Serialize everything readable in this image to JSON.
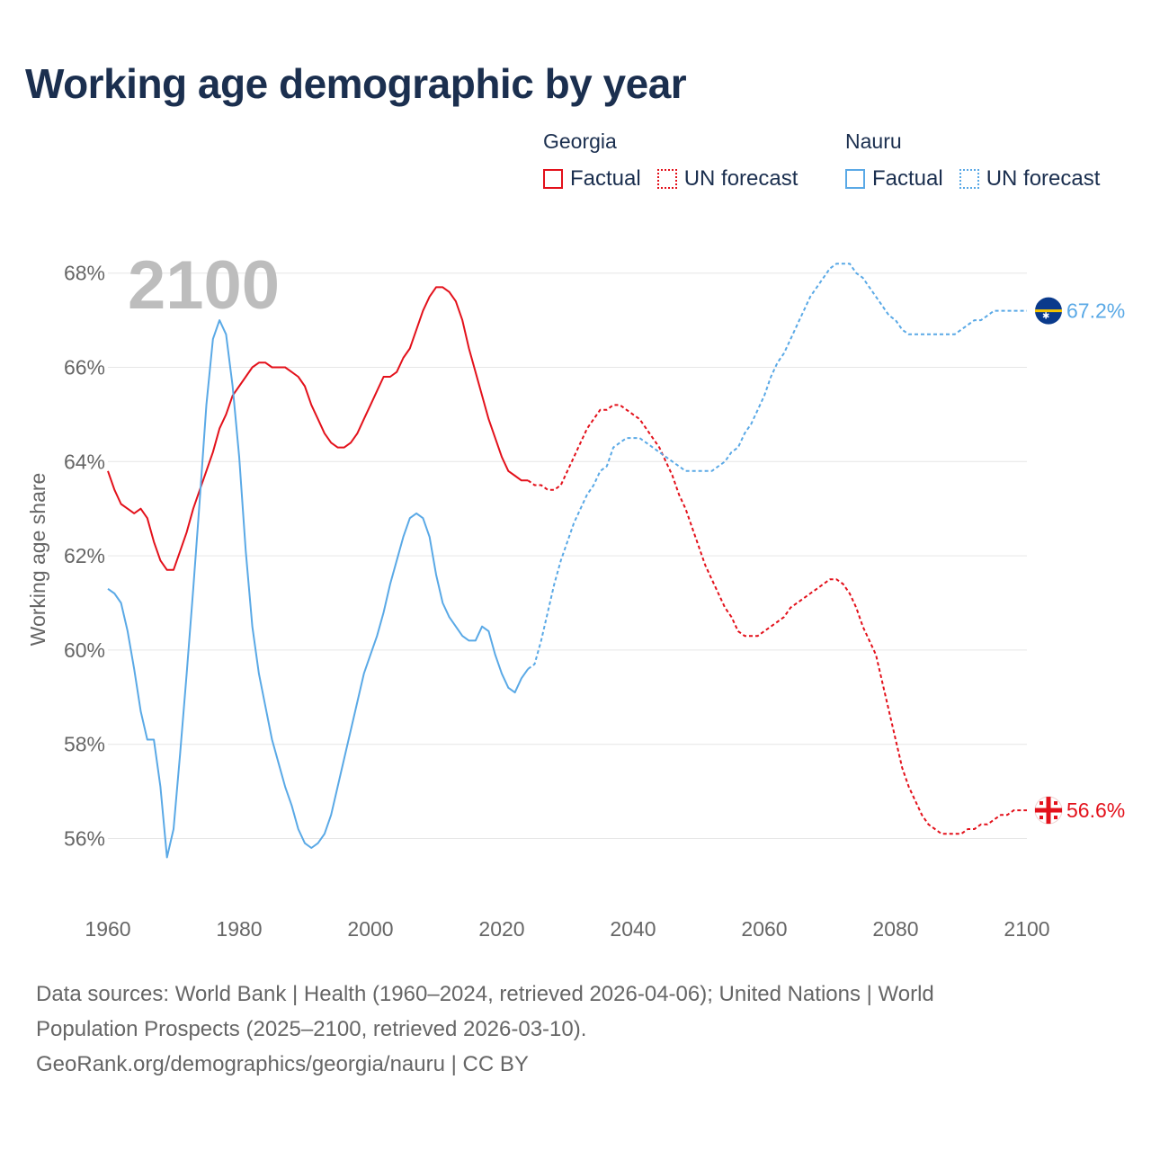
{
  "title": "Working age demographic by year",
  "year_watermark": "2100",
  "legend": {
    "groups": [
      {
        "name": "Georgia",
        "factual": "Factual",
        "forecast": "UN forecast",
        "color": "#e3111b"
      },
      {
        "name": "Nauru",
        "factual": "Factual",
        "forecast": "UN forecast",
        "color": "#5aa9e6"
      }
    ]
  },
  "end_labels": {
    "georgia": "56.6%",
    "nauru": "67.2%"
  },
  "footer": {
    "line1": "Data sources: World Bank | Health (1960–2024, retrieved 2026-04-06); United Nations | World",
    "line2": "Population Prospects (2025–2100, retrieved 2026-03-10).",
    "line3": "GeoRank.org/demographics/georgia/nauru | CC BY"
  },
  "chart_data": {
    "type": "line",
    "title": "Working age demographic by year",
    "xlabel": "",
    "ylabel": "Working age share",
    "xlim": [
      1960,
      2100
    ],
    "ylim": [
      55,
      69
    ],
    "x_ticks": [
      1960,
      1980,
      2000,
      2020,
      2040,
      2060,
      2080,
      2100
    ],
    "x_tick_labels": [
      "1960",
      "1980",
      "2000",
      "2020",
      "2040",
      "2060",
      "2080",
      "2100"
    ],
    "y_ticks": [
      56,
      58,
      60,
      62,
      64,
      66,
      68
    ],
    "y_tick_labels": [
      "56%",
      "58%",
      "60%",
      "62%",
      "64%",
      "66%",
      "68%"
    ],
    "grid": true,
    "legend_position": "top-right",
    "series": [
      {
        "name": "Georgia (Factual)",
        "color": "#e3111b",
        "style": "solid",
        "points": [
          [
            1960,
            63.8
          ],
          [
            1961,
            63.4
          ],
          [
            1962,
            63.1
          ],
          [
            1963,
            63.0
          ],
          [
            1964,
            62.9
          ],
          [
            1965,
            63.0
          ],
          [
            1966,
            62.8
          ],
          [
            1967,
            62.3
          ],
          [
            1968,
            61.9
          ],
          [
            1969,
            61.7
          ],
          [
            1970,
            61.7
          ],
          [
            1971,
            62.1
          ],
          [
            1972,
            62.5
          ],
          [
            1973,
            63.0
          ],
          [
            1974,
            63.4
          ],
          [
            1975,
            63.8
          ],
          [
            1976,
            64.2
          ],
          [
            1977,
            64.7
          ],
          [
            1978,
            65.0
          ],
          [
            1979,
            65.4
          ],
          [
            1980,
            65.6
          ],
          [
            1981,
            65.8
          ],
          [
            1982,
            66.0
          ],
          [
            1983,
            66.1
          ],
          [
            1984,
            66.1
          ],
          [
            1985,
            66.0
          ],
          [
            1986,
            66.0
          ],
          [
            1987,
            66.0
          ],
          [
            1988,
            65.9
          ],
          [
            1989,
            65.8
          ],
          [
            1990,
            65.6
          ],
          [
            1991,
            65.2
          ],
          [
            1992,
            64.9
          ],
          [
            1993,
            64.6
          ],
          [
            1994,
            64.4
          ],
          [
            1995,
            64.3
          ],
          [
            1996,
            64.3
          ],
          [
            1997,
            64.4
          ],
          [
            1998,
            64.6
          ],
          [
            1999,
            64.9
          ],
          [
            2000,
            65.2
          ],
          [
            2001,
            65.5
          ],
          [
            2002,
            65.8
          ],
          [
            2003,
            65.8
          ],
          [
            2004,
            65.9
          ],
          [
            2005,
            66.2
          ],
          [
            2006,
            66.4
          ],
          [
            2007,
            66.8
          ],
          [
            2008,
            67.2
          ],
          [
            2009,
            67.5
          ],
          [
            2010,
            67.7
          ],
          [
            2011,
            67.7
          ],
          [
            2012,
            67.6
          ],
          [
            2013,
            67.4
          ],
          [
            2014,
            67.0
          ],
          [
            2015,
            66.4
          ],
          [
            2016,
            65.9
          ],
          [
            2017,
            65.4
          ],
          [
            2018,
            64.9
          ],
          [
            2019,
            64.5
          ],
          [
            2020,
            64.1
          ],
          [
            2021,
            63.8
          ],
          [
            2022,
            63.7
          ],
          [
            2023,
            63.6
          ],
          [
            2024,
            63.6
          ]
        ]
      },
      {
        "name": "Georgia (UN forecast)",
        "color": "#e3111b",
        "style": "dotted",
        "points": [
          [
            2024,
            63.6
          ],
          [
            2025,
            63.5
          ],
          [
            2026,
            63.5
          ],
          [
            2027,
            63.4
          ],
          [
            2028,
            63.4
          ],
          [
            2029,
            63.5
          ],
          [
            2030,
            63.8
          ],
          [
            2031,
            64.1
          ],
          [
            2032,
            64.4
          ],
          [
            2033,
            64.7
          ],
          [
            2034,
            64.9
          ],
          [
            2035,
            65.1
          ],
          [
            2036,
            65.1
          ],
          [
            2037,
            65.2
          ],
          [
            2038,
            65.2
          ],
          [
            2039,
            65.1
          ],
          [
            2040,
            65.0
          ],
          [
            2041,
            64.9
          ],
          [
            2042,
            64.7
          ],
          [
            2043,
            64.5
          ],
          [
            2044,
            64.3
          ],
          [
            2045,
            64.0
          ],
          [
            2046,
            63.7
          ],
          [
            2047,
            63.3
          ],
          [
            2048,
            63.0
          ],
          [
            2049,
            62.6
          ],
          [
            2050,
            62.2
          ],
          [
            2051,
            61.8
          ],
          [
            2052,
            61.5
          ],
          [
            2053,
            61.2
          ],
          [
            2054,
            60.9
          ],
          [
            2055,
            60.7
          ],
          [
            2056,
            60.4
          ],
          [
            2057,
            60.3
          ],
          [
            2058,
            60.3
          ],
          [
            2059,
            60.3
          ],
          [
            2060,
            60.4
          ],
          [
            2061,
            60.5
          ],
          [
            2062,
            60.6
          ],
          [
            2063,
            60.7
          ],
          [
            2064,
            60.9
          ],
          [
            2065,
            61.0
          ],
          [
            2066,
            61.1
          ],
          [
            2067,
            61.2
          ],
          [
            2068,
            61.3
          ],
          [
            2069,
            61.4
          ],
          [
            2070,
            61.5
          ],
          [
            2071,
            61.5
          ],
          [
            2072,
            61.4
          ],
          [
            2073,
            61.2
          ],
          [
            2074,
            60.9
          ],
          [
            2075,
            60.5
          ],
          [
            2076,
            60.2
          ],
          [
            2077,
            59.9
          ],
          [
            2078,
            59.3
          ],
          [
            2079,
            58.7
          ],
          [
            2080,
            58.1
          ],
          [
            2081,
            57.5
          ],
          [
            2082,
            57.1
          ],
          [
            2083,
            56.8
          ],
          [
            2084,
            56.5
          ],
          [
            2085,
            56.3
          ],
          [
            2086,
            56.2
          ],
          [
            2087,
            56.1
          ],
          [
            2088,
            56.1
          ],
          [
            2089,
            56.1
          ],
          [
            2090,
            56.1
          ],
          [
            2091,
            56.2
          ],
          [
            2092,
            56.2
          ],
          [
            2093,
            56.3
          ],
          [
            2094,
            56.3
          ],
          [
            2095,
            56.4
          ],
          [
            2096,
            56.5
          ],
          [
            2097,
            56.5
          ],
          [
            2098,
            56.6
          ],
          [
            2099,
            56.6
          ],
          [
            2100,
            56.6
          ]
        ]
      },
      {
        "name": "Nauru (Factual)",
        "color": "#5aa9e6",
        "style": "solid",
        "points": [
          [
            1960,
            61.3
          ],
          [
            1961,
            61.2
          ],
          [
            1962,
            61.0
          ],
          [
            1963,
            60.4
          ],
          [
            1964,
            59.6
          ],
          [
            1965,
            58.7
          ],
          [
            1966,
            58.1
          ],
          [
            1967,
            58.1
          ],
          [
            1968,
            57.1
          ],
          [
            1969,
            55.6
          ],
          [
            1970,
            56.2
          ],
          [
            1971,
            57.8
          ],
          [
            1972,
            59.5
          ],
          [
            1973,
            61.3
          ],
          [
            1974,
            63.2
          ],
          [
            1975,
            65.2
          ],
          [
            1976,
            66.6
          ],
          [
            1977,
            67.0
          ],
          [
            1978,
            66.7
          ],
          [
            1979,
            65.6
          ],
          [
            1980,
            64.1
          ],
          [
            1981,
            62.1
          ],
          [
            1982,
            60.5
          ],
          [
            1983,
            59.5
          ],
          [
            1984,
            58.8
          ],
          [
            1985,
            58.1
          ],
          [
            1986,
            57.6
          ],
          [
            1987,
            57.1
          ],
          [
            1988,
            56.7
          ],
          [
            1989,
            56.2
          ],
          [
            1990,
            55.9
          ],
          [
            1991,
            55.8
          ],
          [
            1992,
            55.9
          ],
          [
            1993,
            56.1
          ],
          [
            1994,
            56.5
          ],
          [
            1995,
            57.1
          ],
          [
            1996,
            57.7
          ],
          [
            1997,
            58.3
          ],
          [
            1998,
            58.9
          ],
          [
            1999,
            59.5
          ],
          [
            2000,
            59.9
          ],
          [
            2001,
            60.3
          ],
          [
            2002,
            60.8
          ],
          [
            2003,
            61.4
          ],
          [
            2004,
            61.9
          ],
          [
            2005,
            62.4
          ],
          [
            2006,
            62.8
          ],
          [
            2007,
            62.9
          ],
          [
            2008,
            62.8
          ],
          [
            2009,
            62.4
          ],
          [
            2010,
            61.6
          ],
          [
            2011,
            61.0
          ],
          [
            2012,
            60.7
          ],
          [
            2013,
            60.5
          ],
          [
            2014,
            60.3
          ],
          [
            2015,
            60.2
          ],
          [
            2016,
            60.2
          ],
          [
            2017,
            60.5
          ],
          [
            2018,
            60.4
          ],
          [
            2019,
            59.9
          ],
          [
            2020,
            59.5
          ],
          [
            2021,
            59.2
          ],
          [
            2022,
            59.1
          ],
          [
            2023,
            59.4
          ],
          [
            2024,
            59.6
          ]
        ]
      },
      {
        "name": "Nauru (UN forecast)",
        "color": "#5aa9e6",
        "style": "dotted",
        "points": [
          [
            2024,
            59.6
          ],
          [
            2025,
            59.7
          ],
          [
            2026,
            60.2
          ],
          [
            2027,
            60.8
          ],
          [
            2028,
            61.4
          ],
          [
            2029,
            61.9
          ],
          [
            2030,
            62.3
          ],
          [
            2031,
            62.7
          ],
          [
            2032,
            63.0
          ],
          [
            2033,
            63.3
          ],
          [
            2034,
            63.5
          ],
          [
            2035,
            63.8
          ],
          [
            2036,
            63.9
          ],
          [
            2037,
            64.3
          ],
          [
            2038,
            64.4
          ],
          [
            2039,
            64.5
          ],
          [
            2040,
            64.5
          ],
          [
            2041,
            64.5
          ],
          [
            2042,
            64.4
          ],
          [
            2043,
            64.3
          ],
          [
            2044,
            64.2
          ],
          [
            2045,
            64.1
          ],
          [
            2046,
            64.0
          ],
          [
            2047,
            63.9
          ],
          [
            2048,
            63.8
          ],
          [
            2049,
            63.8
          ],
          [
            2050,
            63.8
          ],
          [
            2051,
            63.8
          ],
          [
            2052,
            63.8
          ],
          [
            2053,
            63.9
          ],
          [
            2054,
            64.0
          ],
          [
            2055,
            64.2
          ],
          [
            2056,
            64.3
          ],
          [
            2057,
            64.6
          ],
          [
            2058,
            64.8
          ],
          [
            2059,
            65.1
          ],
          [
            2060,
            65.4
          ],
          [
            2061,
            65.8
          ],
          [
            2062,
            66.1
          ],
          [
            2063,
            66.3
          ],
          [
            2064,
            66.6
          ],
          [
            2065,
            66.9
          ],
          [
            2066,
            67.2
          ],
          [
            2067,
            67.5
          ],
          [
            2068,
            67.7
          ],
          [
            2069,
            67.9
          ],
          [
            2070,
            68.1
          ],
          [
            2071,
            68.2
          ],
          [
            2072,
            68.2
          ],
          [
            2073,
            68.2
          ],
          [
            2074,
            68.0
          ],
          [
            2075,
            67.9
          ],
          [
            2076,
            67.7
          ],
          [
            2077,
            67.5
          ],
          [
            2078,
            67.3
          ],
          [
            2079,
            67.1
          ],
          [
            2080,
            67.0
          ],
          [
            2081,
            66.8
          ],
          [
            2082,
            66.7
          ],
          [
            2083,
            66.7
          ],
          [
            2084,
            66.7
          ],
          [
            2085,
            66.7
          ],
          [
            2086,
            66.7
          ],
          [
            2087,
            66.7
          ],
          [
            2088,
            66.7
          ],
          [
            2089,
            66.7
          ],
          [
            2090,
            66.8
          ],
          [
            2091,
            66.9
          ],
          [
            2092,
            67.0
          ],
          [
            2093,
            67.0
          ],
          [
            2094,
            67.1
          ],
          [
            2095,
            67.2
          ],
          [
            2096,
            67.2
          ],
          [
            2097,
            67.2
          ],
          [
            2098,
            67.2
          ],
          [
            2099,
            67.2
          ],
          [
            2100,
            67.2
          ]
        ]
      }
    ]
  }
}
